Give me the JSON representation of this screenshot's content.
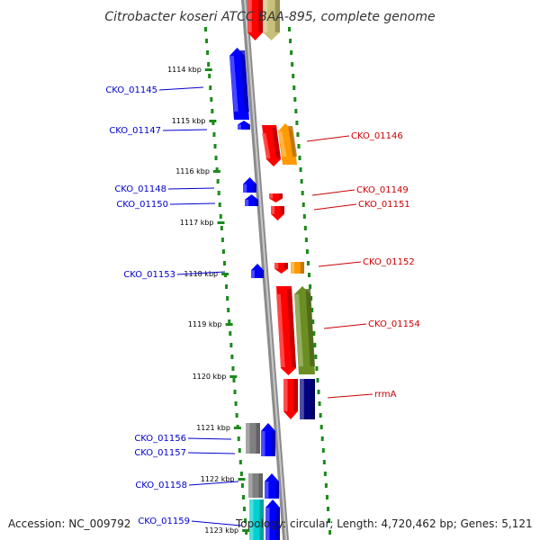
{
  "title": "Citrobacter koseri ATCC BAA-895, complete genome",
  "footer": {
    "accession": "Accession: NC_009792",
    "topology": "Topology: circular; Length: 4,720,462 bp; Genes: 5,121"
  },
  "colors": {
    "backbone": "#8c8c8c",
    "dots": "#1a8a1a",
    "left_label": "#0000cc",
    "right_label": "#cc0000",
    "red": "#ff0000",
    "blue": "#0000ff",
    "orange": "#ff9900",
    "olive": "#6b8e23",
    "khaki": "#c8c078",
    "gray": "#808080",
    "navy": "#000080",
    "cyan": "#00d0d0"
  },
  "kbp_ticks": [
    {
      "label": "1114 kbp"
    },
    {
      "label": "1115 kbp"
    },
    {
      "label": "1116 kbp"
    },
    {
      "label": "1117 kbp"
    },
    {
      "label": "1118 kbp"
    },
    {
      "label": "1119 kbp"
    },
    {
      "label": "1120 kbp"
    },
    {
      "label": "1121 kbp"
    },
    {
      "label": "1122 kbp"
    },
    {
      "label": "1123 kbp"
    }
  ],
  "left_labels": [
    {
      "text": "CKO_01145"
    },
    {
      "text": "CKO_01147"
    },
    {
      "text": "CKO_01148"
    },
    {
      "text": "CKO_01150"
    },
    {
      "text": "CKO_01153"
    },
    {
      "text": "CKO_01156"
    },
    {
      "text": "CKO_01157"
    },
    {
      "text": "CKO_01158"
    },
    {
      "text": "CKO_01159"
    }
  ],
  "right_labels": [
    {
      "text": "CKO_01146"
    },
    {
      "text": "CKO_01149"
    },
    {
      "text": "CKO_01151"
    },
    {
      "text": "CKO_01152"
    },
    {
      "text": "CKO_01154"
    },
    {
      "text": "rrmA"
    }
  ]
}
